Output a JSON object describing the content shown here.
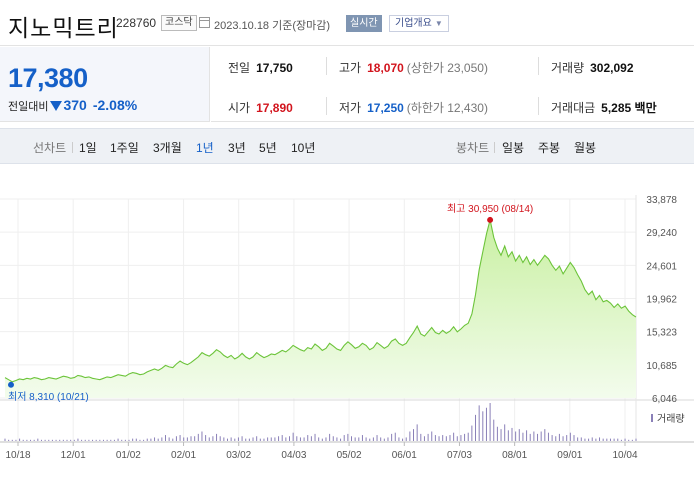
{
  "header": {
    "name": "지노믹트리",
    "code": "228760",
    "market": "코스닥",
    "date": "2023.10.18 기준(장마감)",
    "realtime_label": "실시간",
    "company_label": "기업개요"
  },
  "price": {
    "current": "17,380",
    "change_label": "전일대비",
    "change": "370",
    "change_pct": "-2.08%"
  },
  "stats": {
    "prev": {
      "label": "전일",
      "value": "17,750"
    },
    "high": {
      "label": "고가",
      "value": "18,070",
      "sub": "(상한가 23,050)"
    },
    "volume": {
      "label": "거래량",
      "value": "302,092"
    },
    "open": {
      "label": "시가",
      "value": "17,890"
    },
    "low": {
      "label": "저가",
      "value": "17,250",
      "sub": "(하한가 12,430)"
    },
    "amount": {
      "label": "거래대금",
      "value": "5,285",
      "unit": "백만"
    }
  },
  "period_bar": {
    "line_label": "선차트",
    "line_periods": [
      "1일",
      "1주일",
      "3개월",
      "1년",
      "3년",
      "5년",
      "10년"
    ],
    "active_period": "1년",
    "candle_label": "봉차트",
    "candle_periods": [
      "일봉",
      "주봉",
      "월봉"
    ]
  },
  "colors": {
    "up": "#d2141d",
    "down": "#1560c8",
    "line": "#6cc43a",
    "fill_top": "#c9f0a2",
    "fill_bottom": "#f3fced",
    "volume": "#8a80b8"
  },
  "chart_data": {
    "type": "area",
    "x_ticks": [
      "10/18",
      "12/01",
      "01/02",
      "02/01",
      "03/02",
      "04/03",
      "05/02",
      "06/01",
      "07/03",
      "08/01",
      "09/01",
      "10/04"
    ],
    "y_ticks": [
      "33,878",
      "29,240",
      "24,601",
      "19,962",
      "15,323",
      "10,685",
      "6,046"
    ],
    "ylim": [
      6046,
      33878
    ],
    "max_annotation": "최고 30,950 (08/14)",
    "min_annotation": "최저 8,310 (10/21)",
    "volume_label": "거래량",
    "series": [
      {
        "values": [
          8900,
          8600,
          8310,
          8500,
          8700,
          8600,
          8800,
          8700,
          8900,
          8800,
          8600,
          8700,
          8900,
          8800,
          8700,
          8900,
          9100,
          9000,
          8800,
          8900,
          9200,
          9100,
          8900,
          9000,
          8800,
          8700,
          8600,
          8800,
          9000,
          8900,
          9100,
          9300,
          9200,
          9100,
          9400,
          9600,
          9500,
          9300,
          9400,
          9700,
          9900,
          10100,
          9900,
          10200,
          10600,
          10400,
          10300,
          10800,
          11200,
          10900,
          10700,
          11000,
          11400,
          11800,
          12400,
          12100,
          11900,
          12300,
          12800,
          12500,
          12000,
          11700,
          12000,
          11500,
          11800,
          12300,
          11800,
          11500,
          11800,
          12400,
          12000,
          11700,
          11900,
          12200,
          12100,
          12400,
          12700,
          12500,
          12900,
          13400,
          13100,
          12800,
          12600,
          13100,
          12900,
          13600,
          13200,
          12700,
          13000,
          13700,
          13300,
          12900,
          12700,
          13400,
          13900,
          13500,
          13000,
          13200,
          13700,
          13400,
          12800,
          13100,
          13800,
          13400,
          13000,
          13300,
          14000,
          14300,
          13700,
          13400,
          13700,
          14500,
          15200,
          16100,
          15000,
          14700,
          15300,
          15900,
          15200,
          15000,
          15500,
          15100,
          15400,
          16000,
          15300,
          15700,
          16200,
          16500,
          17800,
          20500,
          24000,
          26500,
          29000,
          30950,
          28500,
          27000,
          26000,
          27300,
          25800,
          26500,
          25200,
          26000,
          25000,
          25800,
          24700,
          25400,
          24600,
          25300,
          26000,
          25500,
          24600,
          23900,
          24500,
          23400,
          24200,
          25000,
          24300,
          23300,
          22400,
          21200,
          20500,
          21000,
          19800,
          20400,
          19500,
          19700,
          19300,
          18700,
          19200,
          18600,
          18900,
          18200,
          17700,
          17380
        ]
      }
    ],
    "volume": [
      2,
      1,
      1,
      1,
      2,
      1,
      1,
      1,
      1,
      2,
      1,
      1,
      1,
      1,
      1,
      1,
      1,
      1,
      1,
      1,
      2,
      1,
      1,
      1,
      1,
      1,
      1,
      1,
      1,
      1,
      1,
      2,
      1,
      1,
      1,
      2,
      2,
      1,
      1,
      2,
      2,
      3,
      2,
      3,
      5,
      3,
      2,
      4,
      5,
      3,
      3,
      4,
      4,
      6,
      8,
      5,
      3,
      4,
      6,
      4,
      3,
      2,
      3,
      2,
      3,
      4,
      2,
      2,
      3,
      4,
      2,
      2,
      3,
      3,
      3,
      4,
      5,
      3,
      4,
      7,
      4,
      3,
      3,
      5,
      4,
      6,
      3,
      2,
      3,
      6,
      4,
      3,
      2,
      5,
      6,
      4,
      3,
      3,
      5,
      3,
      2,
      3,
      5,
      3,
      2,
      3,
      6,
      7,
      3,
      2,
      3,
      8,
      10,
      14,
      6,
      4,
      6,
      8,
      5,
      4,
      5,
      4,
      5,
      7,
      4,
      5,
      6,
      7,
      13,
      22,
      30,
      25,
      28,
      32,
      18,
      12,
      10,
      14,
      9,
      11,
      8,
      10,
      7,
      9,
      6,
      8,
      6,
      8,
      10,
      7,
      5,
      4,
      6,
      4,
      5,
      7,
      5,
      3,
      3,
      2,
      2,
      3,
      2,
      3,
      2,
      2,
      2,
      2,
      2,
      1,
      2,
      1,
      1,
      2
    ]
  }
}
